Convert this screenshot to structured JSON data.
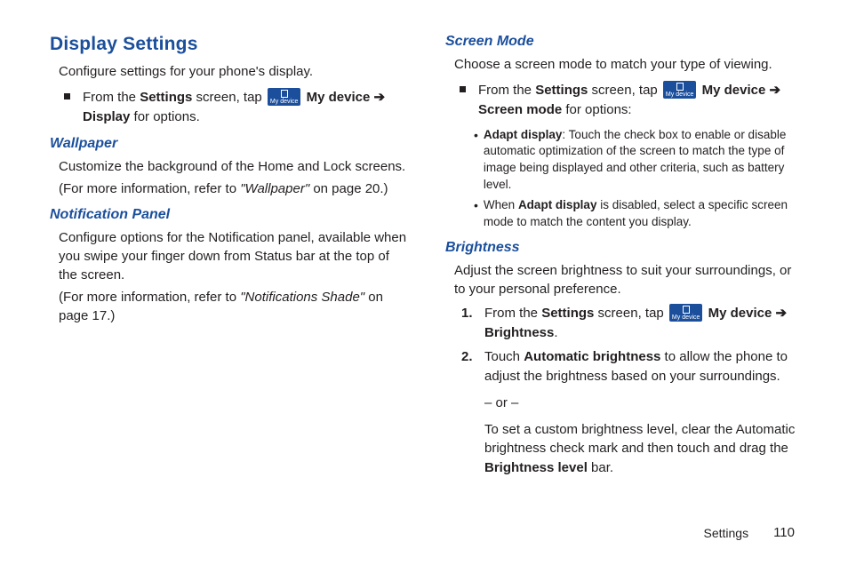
{
  "left": {
    "main_heading": "Display Settings",
    "intro": "Configure settings for your phone's display.",
    "step1_a": "From the ",
    "step1_settings": "Settings",
    "step1_b": " screen, tap ",
    "step1_badge": "My device",
    "step1_mydevice": " My device ➔ Display",
    "step1_c": " for options.",
    "wallpaper_heading": "Wallpaper",
    "wallpaper_body": "Customize the background of the Home and Lock screens.",
    "wallpaper_ref_a": "(For more information, refer to ",
    "wallpaper_ref_i": "\"Wallpaper\" ",
    "wallpaper_ref_b": " on page 20.)",
    "notif_heading": "Notification Panel",
    "notif_body": "Configure options for the Notification panel, available when you swipe your finger down from Status bar at the top of the screen.",
    "notif_ref_a": "(For more information, refer to ",
    "notif_ref_i": "\"Notifications Shade\" ",
    "notif_ref_b": " on page 17.)"
  },
  "right": {
    "screenmode_heading": "Screen Mode",
    "screenmode_intro": "Choose a screen mode to match your type of viewing.",
    "sm_step_a": "From the ",
    "sm_step_settings": "Settings",
    "sm_step_b": " screen, tap ",
    "sm_step_badge": "My device",
    "sm_step_mydevice": " My device ➔ Screen mode",
    "sm_step_c": " for options:",
    "sm_b1_bold": "Adapt display",
    "sm_b1_text": ": Touch the check box to enable or disable automatic optimization of the screen to match the type of image being displayed and other criteria, such as battery level.",
    "sm_b2_a": "When ",
    "sm_b2_bold": "Adapt display",
    "sm_b2_b": " is disabled, select a specific screen mode to match the content you display.",
    "brightness_heading": "Brightness",
    "brightness_intro": "Adjust the screen brightness to suit your surroundings, or to your personal preference.",
    "br1_a": "From the ",
    "br1_settings": "Settings",
    "br1_b": " screen, tap ",
    "br1_badge": "My device",
    "br1_mydevice": " My device ➔ Brightness",
    "br1_c": ".",
    "br2_a": "Touch ",
    "br2_bold": "Automatic brightness",
    "br2_b": " to allow the phone to adjust the brightness based on your surroundings.",
    "br_or": "– or –",
    "br_custom_a": "To set a custom brightness level, clear the Automatic brightness check mark and then touch and drag the ",
    "br_custom_bold": "Brightness level",
    "br_custom_b": " bar."
  },
  "footer": {
    "section": "Settings",
    "page": "110"
  }
}
